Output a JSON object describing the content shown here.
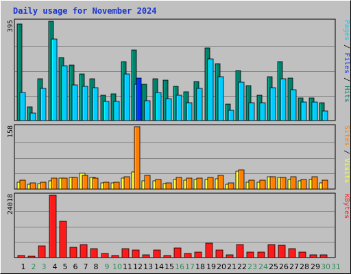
{
  "chart_data": {
    "type": "bar",
    "title": "Daily usage for November 2024",
    "categories": [
      "1",
      "2",
      "3",
      "4",
      "5",
      "6",
      "7",
      "8",
      "9",
      "10",
      "11",
      "12",
      "13",
      "14",
      "15",
      "16",
      "17",
      "18",
      "19",
      "20",
      "21",
      "22",
      "23",
      "24",
      "25",
      "26",
      "27",
      "28",
      "29",
      "30",
      "31"
    ],
    "weekend_days": [
      "2",
      "3",
      "9",
      "10",
      "16",
      "17",
      "23",
      "24",
      "30",
      "31"
    ],
    "colors": {
      "background": "#c0c0c0",
      "grid": "#808080",
      "title": "#1a33cc",
      "weekday_label": "#000000",
      "weekend_label": "#2e8b57",
      "hits": "#00806b",
      "files": "#00ccff",
      "pages": "#0033ff",
      "visits": "#ffff33",
      "sites": "#ff8000",
      "kbytes": "#ff1a1a"
    },
    "panels": [
      {
        "ymax_label": "395",
        "ylim": [
          0,
          395
        ],
        "side_labels": [
          {
            "text": "Pages",
            "color": "#00ccff"
          },
          {
            "text": " / ",
            "color": "#000000"
          },
          {
            "text": "Files",
            "color": "#0033ff"
          },
          {
            "text": " / ",
            "color": "#000000"
          },
          {
            "text": "Hits",
            "color": "#00806b"
          }
        ],
        "series": [
          {
            "key": "hits",
            "values": [
              385,
              55,
              165,
              395,
              250,
              220,
              185,
              165,
              100,
              105,
              235,
              280,
              145,
              165,
              160,
              135,
              115,
              155,
              290,
              225,
              65,
              200,
              140,
              100,
              175,
              235,
              170,
              90,
              90,
              70,
              null
            ]
          },
          {
            "key": "files",
            "values": [
              113,
              30,
              128,
              325,
              218,
              143,
              137,
              130,
              75,
              75,
              185,
              145,
              80,
              112,
              87,
              100,
              70,
              128,
              245,
              175,
              40,
              152,
              70,
              70,
              130,
              165,
              123,
              73,
              73,
              38,
              null
            ]
          },
          {
            "key": "pages",
            "values": [
              null,
              null,
              null,
              null,
              null,
              null,
              null,
              null,
              null,
              null,
              null,
              170,
              null,
              null,
              null,
              null,
              null,
              null,
              null,
              null,
              null,
              null,
              null,
              null,
              null,
              null,
              null,
              null,
              null,
              null,
              null
            ]
          }
        ]
      },
      {
        "ymax_label": "158",
        "ylim": [
          0,
          158
        ],
        "side_labels": [
          {
            "text": "Sites",
            "color": "#ff8000"
          },
          {
            "text": " / ",
            "color": "#000000"
          },
          {
            "text": "Visits",
            "color": "#ffff33"
          }
        ],
        "series": [
          {
            "key": "visits",
            "values": [
              17,
              12,
              14,
              20,
              27,
              29,
              40,
              29,
              15,
              15,
              27,
              44,
              20,
              20,
              14,
              25,
              22,
              24,
              25,
              26,
              13,
              45,
              18,
              18,
              31,
              30,
              25,
              20,
              25,
              15,
              null
            ]
          },
          {
            "key": "sites",
            "values": [
              22,
              15,
              17,
              27,
              28,
              29,
              34,
              27,
              17,
              17,
              32,
              158,
              34,
              25,
              16,
              30,
              28,
              28,
              29,
              34,
              16,
              49,
              22,
              22,
              31,
              30,
              32,
              24,
              32,
              22,
              null
            ]
          }
        ]
      },
      {
        "ymax_label": "24018",
        "ylim": [
          0,
          24018
        ],
        "side_labels": [
          {
            "text": "KBytes",
            "color": "#ff1a1a"
          }
        ],
        "series": [
          {
            "key": "kbytes",
            "values": [
              750,
              500,
              4500,
              24018,
              14000,
              4000,
              5000,
              3500,
              1500,
              800,
              3500,
              3000,
              1000,
              2800,
              800,
              3700,
              1500,
              2200,
              5500,
              3000,
              1000,
              5000,
              2000,
              2000,
              5000,
              4800,
              3500,
              2200,
              1000,
              1000,
              null
            ]
          }
        ]
      }
    ]
  }
}
